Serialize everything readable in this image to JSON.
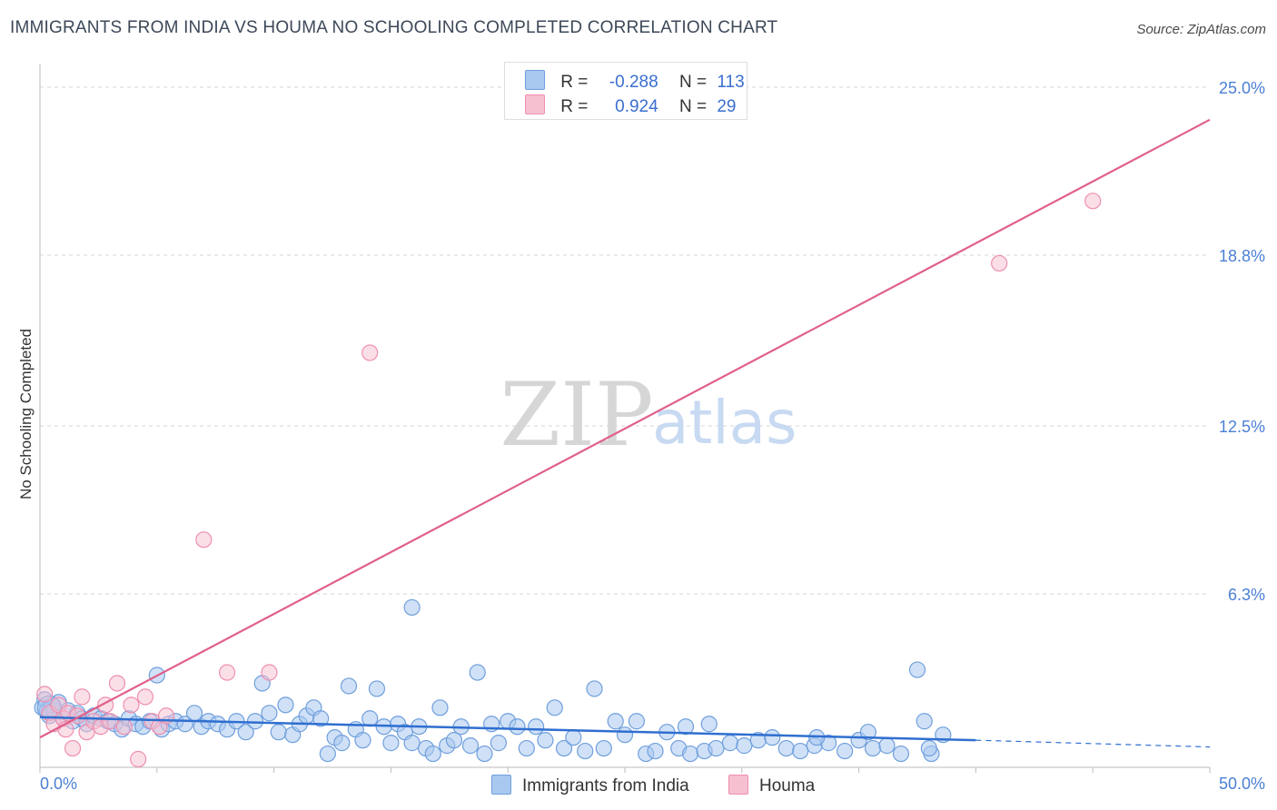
{
  "header": {
    "title": "IMMIGRANTS FROM INDIA VS HOUMA NO SCHOOLING COMPLETED CORRELATION CHART",
    "source": "Source: ZipAtlas.com"
  },
  "legend": {
    "r_label": "R =",
    "n_label": "N =",
    "rows": [
      {
        "r": "-0.288",
        "n": "113"
      },
      {
        "r": "0.924",
        "n": "29"
      }
    ]
  },
  "bottom_legend": [
    "Immigrants from India",
    "Houma"
  ],
  "watermark": {
    "zip": "ZIP",
    "atlas": "atlas"
  },
  "colors": {
    "blue_fill": "#a9c8f0",
    "blue_stroke": "#6f9fdc",
    "blue_line": "#2f6fd0",
    "pink_fill": "#f7c0d0",
    "pink_stroke": "#ee8fb0",
    "pink_line": "#e0608a",
    "tick_text": "#4a7fd4",
    "grid": "#d6d6d6"
  },
  "chart_data": {
    "type": "scatter",
    "title": "IMMIGRANTS FROM INDIA VS HOUMA NO SCHOOLING COMPLETED CORRELATION CHART",
    "xlabel": "",
    "ylabel": "No Schooling Completed",
    "xlim": [
      0,
      50
    ],
    "ylim": [
      0,
      26
    ],
    "x_tick_labels": [
      {
        "value": 0,
        "label": "0.0%"
      },
      {
        "value": 50,
        "label": "50.0%"
      }
    ],
    "y_tick_labels": [
      {
        "value": 6.3,
        "label": "6.3%"
      },
      {
        "value": 12.5,
        "label": "12.5%"
      },
      {
        "value": 18.8,
        "label": "18.8%"
      },
      {
        "value": 25.0,
        "label": "25.0%"
      }
    ],
    "series": [
      {
        "name": "Immigrants from India",
        "r": -0.288,
        "n": 113,
        "trend": {
          "x0": 0,
          "y0": 1.75,
          "x1": 40,
          "y1": 0.9,
          "dashed_to": 50,
          "y_end": 0.65
        },
        "points": [
          [
            0.1,
            2.1
          ],
          [
            0.2,
            2.4
          ],
          [
            0.3,
            2.0
          ],
          [
            0.4,
            1.8
          ],
          [
            0.5,
            2.2
          ],
          [
            0.6,
            2.0
          ],
          [
            0.8,
            2.3
          ],
          [
            1.0,
            1.7
          ],
          [
            1.2,
            2.0
          ],
          [
            1.4,
            1.6
          ],
          [
            1.6,
            1.9
          ],
          [
            1.8,
            1.7
          ],
          [
            2.0,
            1.5
          ],
          [
            2.3,
            1.8
          ],
          [
            2.6,
            1.7
          ],
          [
            2.9,
            1.6
          ],
          [
            3.2,
            1.5
          ],
          [
            3.5,
            1.3
          ],
          [
            3.8,
            1.7
          ],
          [
            4.1,
            1.5
          ],
          [
            4.4,
            1.4
          ],
          [
            4.7,
            1.6
          ],
          [
            5.0,
            3.3
          ],
          [
            5.2,
            1.3
          ],
          [
            5.5,
            1.5
          ],
          [
            5.8,
            1.6
          ],
          [
            6.2,
            1.5
          ],
          [
            6.6,
            1.9
          ],
          [
            6.9,
            1.4
          ],
          [
            7.2,
            1.6
          ],
          [
            7.6,
            1.5
          ],
          [
            8.0,
            1.3
          ],
          [
            8.4,
            1.6
          ],
          [
            8.8,
            1.2
          ],
          [
            9.2,
            1.6
          ],
          [
            9.5,
            3.0
          ],
          [
            9.8,
            1.9
          ],
          [
            10.2,
            1.2
          ],
          [
            10.5,
            2.2
          ],
          [
            10.8,
            1.1
          ],
          [
            11.1,
            1.5
          ],
          [
            11.4,
            1.8
          ],
          [
            11.7,
            2.1
          ],
          [
            12.0,
            1.7
          ],
          [
            12.3,
            0.4
          ],
          [
            12.6,
            1.0
          ],
          [
            12.9,
            0.8
          ],
          [
            13.2,
            2.9
          ],
          [
            13.5,
            1.3
          ],
          [
            13.8,
            0.9
          ],
          [
            14.1,
            1.7
          ],
          [
            14.4,
            2.8
          ],
          [
            14.7,
            1.4
          ],
          [
            15.0,
            0.8
          ],
          [
            15.3,
            1.5
          ],
          [
            15.6,
            1.2
          ],
          [
            15.9,
            0.8
          ],
          [
            16.2,
            1.4
          ],
          [
            16.5,
            0.6
          ],
          [
            16.8,
            0.4
          ],
          [
            17.1,
            2.1
          ],
          [
            17.4,
            0.7
          ],
          [
            17.7,
            0.9
          ],
          [
            18.0,
            1.4
          ],
          [
            18.4,
            0.7
          ],
          [
            18.7,
            3.4
          ],
          [
            19.0,
            0.4
          ],
          [
            19.3,
            1.5
          ],
          [
            19.6,
            0.8
          ],
          [
            20.0,
            1.6
          ],
          [
            20.4,
            1.4
          ],
          [
            20.8,
            0.6
          ],
          [
            21.2,
            1.4
          ],
          [
            21.6,
            0.9
          ],
          [
            22.0,
            2.1
          ],
          [
            22.4,
            0.6
          ],
          [
            22.8,
            1.0
          ],
          [
            23.3,
            0.5
          ],
          [
            23.7,
            2.8
          ],
          [
            24.1,
            0.6
          ],
          [
            24.6,
            1.6
          ],
          [
            25.0,
            1.1
          ],
          [
            25.5,
            1.6
          ],
          [
            25.9,
            0.4
          ],
          [
            26.3,
            0.5
          ],
          [
            26.8,
            1.2
          ],
          [
            27.3,
            0.6
          ],
          [
            27.8,
            0.4
          ],
          [
            28.4,
            0.5
          ],
          [
            28.9,
            0.6
          ],
          [
            15.9,
            5.8
          ],
          [
            29.5,
            0.8
          ],
          [
            30.1,
            0.7
          ],
          [
            30.7,
            0.9
          ],
          [
            31.3,
            1.0
          ],
          [
            31.9,
            0.6
          ],
          [
            32.5,
            0.5
          ],
          [
            33.1,
            0.7
          ],
          [
            33.7,
            0.8
          ],
          [
            34.4,
            0.5
          ],
          [
            35.0,
            0.9
          ],
          [
            35.6,
            0.6
          ],
          [
            36.2,
            0.7
          ],
          [
            36.8,
            0.4
          ],
          [
            37.5,
            3.5
          ],
          [
            37.8,
            1.6
          ],
          [
            38.1,
            0.4
          ],
          [
            38.6,
            1.1
          ],
          [
            38.0,
            0.6
          ],
          [
            27.6,
            1.4
          ],
          [
            28.6,
            1.5
          ],
          [
            33.2,
            1.0
          ],
          [
            35.4,
            1.2
          ]
        ]
      },
      {
        "name": "Houma",
        "r": 0.924,
        "n": 29,
        "trend": {
          "x0": 0,
          "y0": 1.0,
          "x1": 50,
          "y1": 23.8
        },
        "points": [
          [
            0.2,
            2.6
          ],
          [
            0.4,
            1.9
          ],
          [
            0.6,
            1.5
          ],
          [
            0.8,
            2.2
          ],
          [
            1.0,
            1.7
          ],
          [
            1.2,
            1.9
          ],
          [
            1.4,
            0.6
          ],
          [
            1.6,
            1.8
          ],
          [
            1.8,
            2.5
          ],
          [
            2.0,
            1.2
          ],
          [
            2.3,
            1.6
          ],
          [
            2.6,
            1.4
          ],
          [
            2.8,
            2.2
          ],
          [
            3.0,
            1.6
          ],
          [
            3.3,
            3.0
          ],
          [
            3.6,
            1.4
          ],
          [
            3.9,
            2.2
          ],
          [
            4.2,
            0.2
          ],
          [
            4.5,
            2.5
          ],
          [
            4.8,
            1.6
          ],
          [
            5.1,
            1.4
          ],
          [
            5.4,
            1.8
          ],
          [
            7.0,
            8.3
          ],
          [
            8.0,
            3.4
          ],
          [
            9.8,
            3.4
          ],
          [
            14.1,
            15.2
          ],
          [
            41.0,
            18.5
          ],
          [
            45.0,
            20.8
          ],
          [
            1.1,
            1.3
          ]
        ]
      }
    ]
  }
}
